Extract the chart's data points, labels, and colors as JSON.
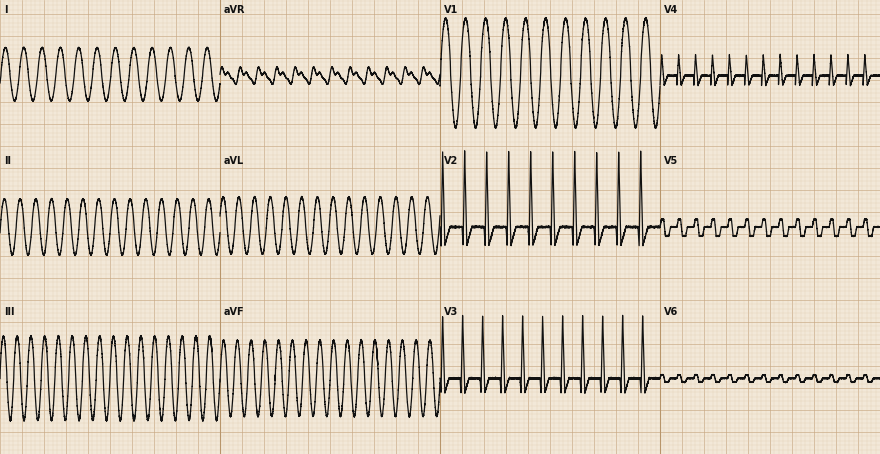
{
  "bg_color": "#f2e8d8",
  "grid_minor_color": "#ddc9aa",
  "grid_major_color": "#c8a882",
  "ecg_color": "#111111",
  "ecg_linewidth": 0.9,
  "fig_width": 8.8,
  "fig_height": 4.54,
  "label_fontsize": 7,
  "label_color": "#111111",
  "row_labels": [
    [
      "I",
      "aVR",
      "V1",
      "V4"
    ],
    [
      "II",
      "aVL",
      "V2",
      "V5"
    ],
    [
      "III",
      "aVF",
      "V3",
      "V6"
    ]
  ]
}
